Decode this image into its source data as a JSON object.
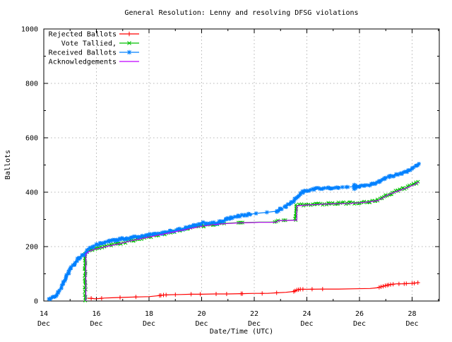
{
  "window": {
    "background": "#ffffff"
  },
  "chart_data": {
    "type": "line",
    "title": "General Resolution: Lenny and resolving DFSG violations",
    "xlabel": "Date/Time (UTC)",
    "ylabel": "Ballots",
    "x_unit": "days since 14 Dec 00:00 (UTC)",
    "xlim": [
      0,
      15.03
    ],
    "ylim": [
      0,
      1000
    ],
    "grid": true,
    "legend_position": "top-left",
    "x_ticks": [
      {
        "day": 0,
        "day_label": "14",
        "month_label": "Dec"
      },
      {
        "day": 2,
        "day_label": "16",
        "month_label": "Dec"
      },
      {
        "day": 4,
        "day_label": "18",
        "month_label": "Dec"
      },
      {
        "day": 6,
        "day_label": "20",
        "month_label": "Dec"
      },
      {
        "day": 8,
        "day_label": "22",
        "month_label": "Dec"
      },
      {
        "day": 10,
        "day_label": "24",
        "month_label": "Dec"
      },
      {
        "day": 12,
        "day_label": "26",
        "month_label": "Dec"
      },
      {
        "day": 14,
        "day_label": "28",
        "month_label": "Dec"
      }
    ],
    "x_minor_days": [
      1,
      3,
      5,
      7,
      9,
      11,
      13,
      15
    ],
    "y_ticks": [
      0,
      200,
      400,
      600,
      800,
      1000
    ],
    "y_minor": [
      100,
      300,
      500,
      700,
      900
    ],
    "grid_days": [
      2,
      4,
      6,
      8,
      10,
      12,
      14
    ],
    "grid_values": [
      200,
      400,
      600,
      800
    ],
    "series": [
      {
        "name": "Rejected Ballots",
        "color": "#ff0000",
        "marker": "plus",
        "points": [
          [
            1.66,
            10
          ],
          [
            1.8,
            10
          ],
          [
            1.95,
            8
          ],
          [
            2.1,
            9
          ],
          [
            2.3,
            11
          ],
          [
            2.6,
            12
          ],
          [
            2.9,
            13
          ],
          [
            3.2,
            14
          ],
          [
            3.6,
            15
          ],
          [
            4.0,
            16
          ],
          [
            4.4,
            20
          ],
          [
            4.55,
            22
          ],
          [
            4.8,
            23
          ],
          [
            5.2,
            24
          ],
          [
            5.6,
            25
          ],
          [
            6.0,
            25
          ],
          [
            6.5,
            26
          ],
          [
            7.0,
            26
          ],
          [
            7.5,
            27
          ],
          [
            8.0,
            28
          ],
          [
            8.5,
            28
          ],
          [
            8.85,
            30
          ],
          [
            9.2,
            32
          ],
          [
            9.5,
            35
          ],
          [
            9.6,
            40
          ],
          [
            9.75,
            43
          ],
          [
            10.0,
            43
          ],
          [
            10.6,
            44
          ],
          [
            11.2,
            44
          ],
          [
            11.8,
            45
          ],
          [
            12.4,
            46
          ],
          [
            12.7,
            49
          ],
          [
            12.85,
            53
          ],
          [
            13.0,
            57
          ],
          [
            13.2,
            61
          ],
          [
            13.4,
            63
          ],
          [
            13.6,
            63
          ],
          [
            13.8,
            64
          ],
          [
            14.0,
            65
          ],
          [
            14.1,
            66
          ],
          [
            14.25,
            68
          ]
        ],
        "marker_dense_ranges": [],
        "marker_days": [
          1.8,
          2.2,
          2.9,
          3.5,
          4.4,
          4.45,
          4.55,
          4.65,
          5.0,
          5.6,
          5.95,
          6.55,
          6.95,
          7.5,
          7.55,
          8.3,
          8.85,
          9.5,
          9.55,
          9.62,
          9.68,
          9.75,
          9.85,
          10.2,
          10.6,
          12.75,
          12.82,
          12.9,
          12.98,
          13.05,
          13.1,
          13.18,
          13.28,
          13.5,
          13.7,
          13.78,
          14.0,
          14.08,
          14.22
        ]
      },
      {
        "name": "Vote Tallied,",
        "color": "#00c000",
        "marker": "cross",
        "points": [
          [
            1.57,
            0
          ],
          [
            1.57,
            174
          ],
          [
            1.65,
            180
          ],
          [
            1.8,
            187
          ],
          [
            1.95,
            192
          ],
          [
            2.1,
            195
          ],
          [
            2.3,
            200
          ],
          [
            2.55,
            205
          ],
          [
            2.8,
            210
          ],
          [
            3.1,
            217
          ],
          [
            3.4,
            224
          ],
          [
            3.7,
            230
          ],
          [
            4.0,
            236
          ],
          [
            4.3,
            242
          ],
          [
            4.6,
            248
          ],
          [
            4.9,
            254
          ],
          [
            5.2,
            260
          ],
          [
            5.5,
            266
          ],
          [
            5.8,
            272
          ],
          [
            6.1,
            277
          ],
          [
            6.4,
            281
          ],
          [
            6.7,
            284
          ],
          [
            7.0,
            286
          ],
          [
            7.4,
            288
          ],
          [
            7.8,
            289
          ],
          [
            8.2,
            290
          ],
          [
            8.6,
            290
          ],
          [
            8.82,
            291
          ],
          [
            8.88,
            296
          ],
          [
            9.2,
            297
          ],
          [
            9.56,
            298
          ],
          [
            9.58,
            350
          ],
          [
            9.7,
            352
          ],
          [
            10.0,
            354
          ],
          [
            10.4,
            356
          ],
          [
            10.8,
            358
          ],
          [
            11.2,
            359
          ],
          [
            11.6,
            360
          ],
          [
            12.0,
            362
          ],
          [
            12.4,
            366
          ],
          [
            12.7,
            370
          ],
          [
            12.85,
            378
          ],
          [
            13.0,
            387
          ],
          [
            13.2,
            396
          ],
          [
            13.45,
            405
          ],
          [
            13.65,
            412
          ],
          [
            13.85,
            419
          ],
          [
            14.05,
            427
          ],
          [
            14.15,
            433
          ],
          [
            14.25,
            438
          ]
        ],
        "marker_dense_ranges": [
          [
            1.57,
            6.85
          ],
          [
            9.56,
            14.25
          ]
        ],
        "marker_days": [
          7.4,
          7.45,
          7.5,
          7.55,
          8.78,
          8.84,
          8.9,
          9.12,
          9.18
        ]
      },
      {
        "name": "Received Ballots",
        "color": "#0080ff",
        "marker": "asterisk",
        "points": [
          [
            0.18,
            5
          ],
          [
            0.25,
            10
          ],
          [
            0.32,
            16
          ],
          [
            0.4,
            14
          ],
          [
            0.48,
            22
          ],
          [
            0.55,
            32
          ],
          [
            0.65,
            48
          ],
          [
            0.75,
            68
          ],
          [
            0.85,
            88
          ],
          [
            0.95,
            105
          ],
          [
            1.05,
            122
          ],
          [
            1.15,
            136
          ],
          [
            1.25,
            148
          ],
          [
            1.35,
            158
          ],
          [
            1.45,
            167
          ],
          [
            1.55,
            172
          ],
          [
            1.65,
            186
          ],
          [
            1.75,
            193
          ],
          [
            1.85,
            199
          ],
          [
            2.0,
            206
          ],
          [
            2.15,
            211
          ],
          [
            2.3,
            215
          ],
          [
            2.5,
            220
          ],
          [
            2.7,
            224
          ],
          [
            2.9,
            227
          ],
          [
            3.1,
            230
          ],
          [
            3.3,
            233
          ],
          [
            3.6,
            237
          ],
          [
            3.9,
            241
          ],
          [
            4.2,
            245
          ],
          [
            4.5,
            250
          ],
          [
            4.8,
            255
          ],
          [
            5.1,
            261
          ],
          [
            5.4,
            268
          ],
          [
            5.7,
            276
          ],
          [
            5.95,
            284
          ],
          [
            6.05,
            287
          ],
          [
            6.15,
            285
          ],
          [
            6.6,
            286
          ],
          [
            6.75,
            293
          ],
          [
            6.9,
            300
          ],
          [
            7.1,
            306
          ],
          [
            7.4,
            312
          ],
          [
            7.8,
            318
          ],
          [
            8.07,
            322
          ],
          [
            8.48,
            326
          ],
          [
            8.85,
            330
          ],
          [
            9.0,
            337
          ],
          [
            9.2,
            348
          ],
          [
            9.4,
            362
          ],
          [
            9.6,
            379
          ],
          [
            9.75,
            395
          ],
          [
            9.85,
            401
          ],
          [
            10.0,
            405
          ],
          [
            10.3,
            411
          ],
          [
            10.6,
            415
          ],
          [
            10.9,
            417
          ],
          [
            11.2,
            418
          ],
          [
            11.5,
            419
          ],
          [
            11.82,
            420
          ],
          [
            12.0,
            422
          ],
          [
            12.2,
            425
          ],
          [
            12.45,
            429
          ],
          [
            12.6,
            433
          ],
          [
            12.75,
            441
          ],
          [
            12.95,
            451
          ],
          [
            13.15,
            458
          ],
          [
            13.4,
            465
          ],
          [
            13.6,
            470
          ],
          [
            13.8,
            477
          ],
          [
            14.0,
            487
          ],
          [
            14.15,
            496
          ],
          [
            14.25,
            504
          ]
        ],
        "marker_dense_ranges": [
          [
            0.18,
            7.88
          ],
          [
            8.82,
            11.2
          ],
          [
            11.95,
            14.25
          ]
        ],
        "marker_days": [
          8.07,
          8.48,
          11.35,
          11.5,
          11.55,
          11.78,
          11.82,
          11.86,
          11.9
        ],
        "marker_extra_points": [
          [
            11.8,
            412
          ],
          [
            11.8,
            427
          ],
          [
            11.84,
            414
          ],
          [
            11.84,
            425
          ],
          [
            11.86,
            418
          ]
        ]
      },
      {
        "name": "Acknowledgements",
        "color": "#c000ff",
        "marker": "none",
        "points": [
          [
            1.6,
            0
          ],
          [
            1.6,
            173
          ],
          [
            1.7,
            181
          ],
          [
            1.9,
            189
          ],
          [
            2.1,
            194
          ],
          [
            2.3,
            199
          ],
          [
            2.55,
            204
          ],
          [
            2.8,
            209
          ],
          [
            3.1,
            216
          ],
          [
            3.4,
            223
          ],
          [
            3.7,
            229
          ],
          [
            4.0,
            235
          ],
          [
            4.3,
            241
          ],
          [
            4.6,
            247
          ],
          [
            4.9,
            253
          ],
          [
            5.2,
            259
          ],
          [
            5.5,
            265
          ],
          [
            5.8,
            271
          ],
          [
            6.1,
            276
          ],
          [
            6.4,
            280
          ],
          [
            6.7,
            283
          ],
          [
            7.0,
            285
          ],
          [
            7.4,
            287
          ],
          [
            7.8,
            288
          ],
          [
            8.2,
            289
          ],
          [
            8.6,
            289
          ],
          [
            8.85,
            290
          ],
          [
            8.9,
            295
          ],
          [
            9.2,
            296
          ],
          [
            9.62,
            297
          ],
          [
            9.62,
            349
          ],
          [
            9.75,
            351
          ],
          [
            10.0,
            353
          ],
          [
            10.4,
            355
          ],
          [
            10.8,
            357
          ],
          [
            11.2,
            358
          ],
          [
            11.6,
            359
          ],
          [
            12.0,
            361
          ],
          [
            12.4,
            365
          ],
          [
            12.7,
            369
          ],
          [
            12.85,
            377
          ],
          [
            13.0,
            386
          ],
          [
            13.2,
            395
          ],
          [
            13.45,
            404
          ],
          [
            13.65,
            411
          ],
          [
            13.85,
            418
          ],
          [
            14.05,
            426
          ],
          [
            14.15,
            432
          ],
          [
            14.25,
            437
          ]
        ],
        "marker_dense_ranges": [],
        "marker_days": []
      }
    ]
  }
}
